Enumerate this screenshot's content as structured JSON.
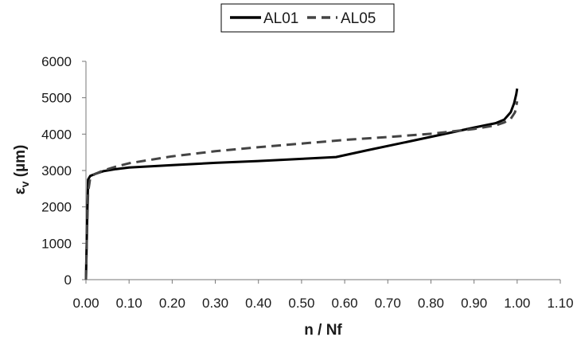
{
  "chart_data": {
    "type": "line",
    "title": "",
    "xlabel": "n / Nf",
    "ylabel_main": "ε",
    "ylabel_sub": "v",
    "ylabel_unit": " (µm)",
    "xlim": [
      0,
      1.1
    ],
    "ylim": [
      0,
      6000
    ],
    "x_ticks": [
      0,
      0.1,
      0.2,
      0.3,
      0.4,
      0.5,
      0.6,
      0.7,
      0.8,
      0.9,
      1.0,
      1.1
    ],
    "x_tick_labels": [
      "0.00",
      "0.10",
      "0.20",
      "0.30",
      "0.40",
      "0.50",
      "0.60",
      "0.70",
      "0.80",
      "0.90",
      "1.00",
      "1.10"
    ],
    "y_ticks": [
      0,
      1000,
      2000,
      3000,
      4000,
      5000,
      6000
    ],
    "y_tick_labels": [
      "0",
      "1000",
      "2000",
      "3000",
      "4000",
      "5000",
      "6000"
    ],
    "grid": false,
    "legend_position": "top-center",
    "series": [
      {
        "name": "AL01",
        "style": "solid",
        "color": "#000000",
        "x": [
          0,
          0.002,
          0.005,
          0.01,
          0.02,
          0.04,
          0.07,
          0.1,
          0.2,
          0.3,
          0.4,
          0.5,
          0.58,
          0.65,
          0.75,
          0.85,
          0.9,
          0.95,
          0.97,
          0.985,
          0.993,
          0.998,
          1.0
        ],
        "y": [
          0,
          1200,
          2750,
          2850,
          2900,
          2980,
          3040,
          3080,
          3150,
          3210,
          3260,
          3320,
          3370,
          3550,
          3800,
          4050,
          4180,
          4300,
          4400,
          4600,
          4850,
          5100,
          5250
        ]
      },
      {
        "name": "AL05",
        "style": "dashed",
        "color": "#444444",
        "x": [
          0,
          0.002,
          0.005,
          0.01,
          0.02,
          0.04,
          0.07,
          0.1,
          0.2,
          0.3,
          0.4,
          0.5,
          0.6,
          0.7,
          0.8,
          0.9,
          0.95,
          0.97,
          0.985,
          0.995,
          1.0
        ],
        "y": [
          0,
          1100,
          2400,
          2800,
          2900,
          3000,
          3110,
          3200,
          3390,
          3530,
          3640,
          3740,
          3840,
          3920,
          4010,
          4140,
          4240,
          4320,
          4420,
          4600,
          4900
        ]
      }
    ]
  }
}
